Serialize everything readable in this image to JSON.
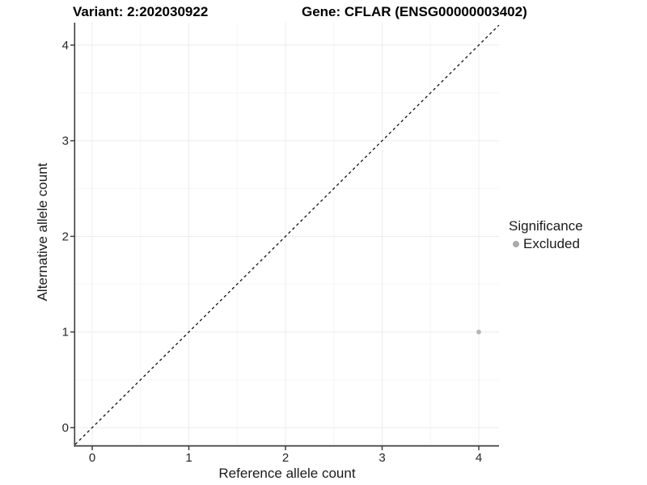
{
  "chart_data": {
    "type": "scatter",
    "title_left": "Variant: 2:202030922",
    "title_right": "Gene: CFLAR (ENSG00000003402)",
    "xlabel": "Reference allele count",
    "ylabel": "Alternative allele count",
    "xlim": [
      -0.2,
      4.2
    ],
    "ylim": [
      -0.2,
      4.2
    ],
    "x_ticks": [
      0,
      1,
      2,
      3,
      4
    ],
    "y_ticks": [
      0,
      1,
      2,
      3,
      4
    ],
    "grid_minor_ticks": [
      0.5,
      1.5,
      2.5,
      3.5
    ],
    "grid": "major+minor",
    "reference_line": {
      "type": "identity",
      "slope": 1,
      "intercept": 0,
      "style": "dashed"
    },
    "series": [
      {
        "name": "Excluded",
        "points": [
          {
            "x": 4,
            "y": 1
          }
        ]
      }
    ],
    "legend": {
      "title": "Significance",
      "position": "right",
      "entries": [
        {
          "label": "Excluded"
        }
      ]
    }
  },
  "colors": {
    "background": "#ffffff",
    "axis_line": "#3f3f3f",
    "tick_label": "#262626",
    "grid_major": "#ececec",
    "grid_minor": "#f5f5f5",
    "point": "#b5b5b5",
    "legend_point": "#aaaaaa",
    "dashed_line": "#111111"
  }
}
